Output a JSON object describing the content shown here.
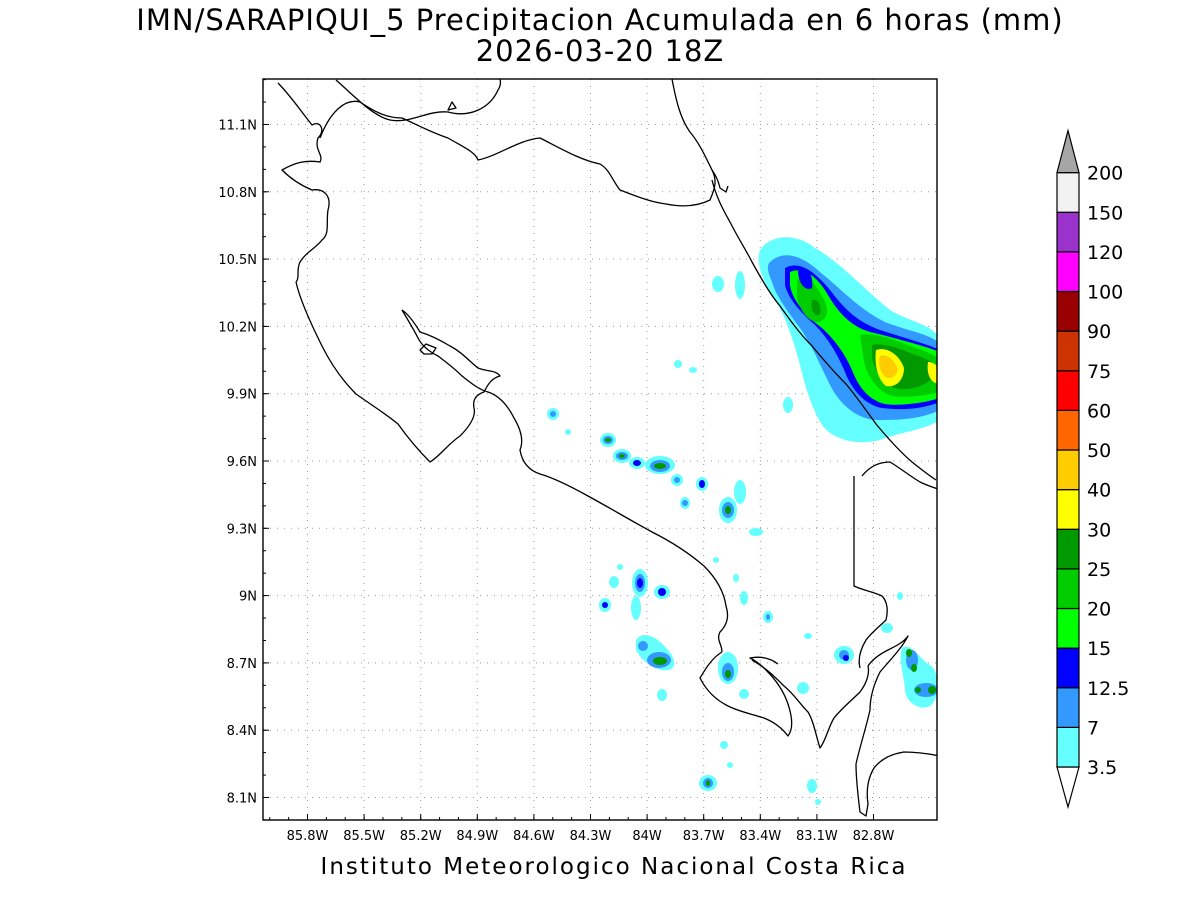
{
  "title": "IMN/SARAPIQUI_5 Precipitacion Acumulada en 6 horas (mm)",
  "subtitle": "2026-03-20 18Z",
  "credit": "Instituto Meteorologico Nacional Costa Rica",
  "lon_ticks": [
    "85.8W",
    "85.5W",
    "85.2W",
    "84.9W",
    "84.6W",
    "84.3W",
    "84W",
    "83.7W",
    "83.4W",
    "83.1W",
    "82.8W"
  ],
  "lat_ticks": [
    "11.1N",
    "10.8N",
    "10.5N",
    "10.2N",
    "9.9N",
    "9.6N",
    "9.3N",
    "9N",
    "8.7N",
    "8.4N",
    "8.1N"
  ],
  "colorbar": {
    "labels": [
      "3.5",
      "7",
      "12.5",
      "15",
      "20",
      "25",
      "30",
      "40",
      "50",
      "60",
      "75",
      "90",
      "100",
      "120",
      "150",
      "200"
    ],
    "colors": [
      "#66ffff",
      "#3399ff",
      "#0000ff",
      "#00ff00",
      "#00cc00",
      "#009900",
      "#ffff00",
      "#ffcc00",
      "#ff6600",
      "#ff0000",
      "#cc3300",
      "#990000",
      "#ff00ff",
      "#9933cc",
      "#f2f2f2",
      "#a6a6a6"
    ]
  }
}
